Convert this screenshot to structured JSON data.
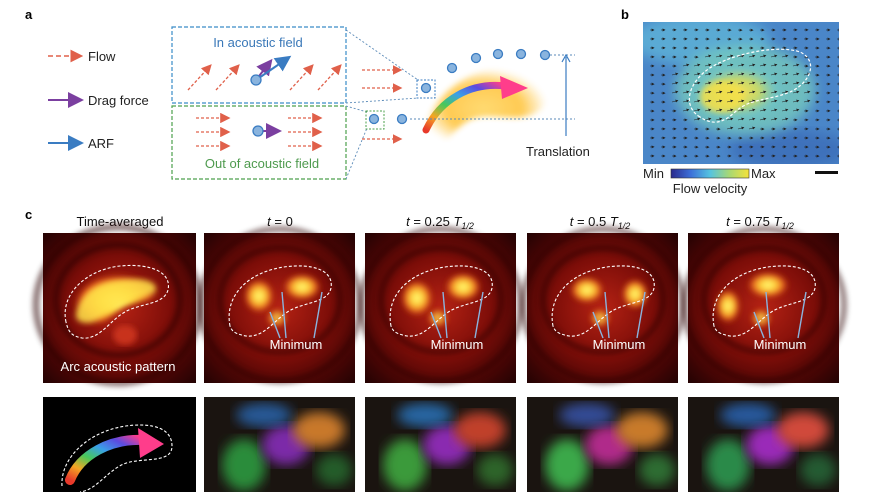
{
  "panels": {
    "a": "a",
    "b": "b",
    "c": "c"
  },
  "panel_a": {
    "legend": [
      {
        "label": "Flow",
        "color": "#e07a5f"
      },
      {
        "label": "Drag force",
        "color": "#7b3fa0"
      },
      {
        "label": "ARF",
        "color": "#3a7cc2"
      }
    ],
    "in_field_label": "In acoustic field",
    "out_field_label": "Out of acoustic field",
    "translation_label": "Translation"
  },
  "panel_b": {
    "colorbar_min": "Min",
    "colorbar_max": "Max",
    "colorbar_title": "Flow velocity"
  },
  "panel_c": {
    "columns": [
      {
        "prefix": "",
        "title": "Time-averaged"
      },
      {
        "prefix": "t",
        "title": " = 0"
      },
      {
        "prefix": "t",
        "title": " = 0.25 ",
        "t_sym": "T",
        "t_sub": "1/2"
      },
      {
        "prefix": "t",
        "title": " = 0.5 ",
        "t_sym": "T",
        "t_sub": "1/2"
      },
      {
        "prefix": "t",
        "title": " = 0.75 ",
        "t_sym": "T",
        "t_sub": "1/2"
      }
    ],
    "pattern_label": "Arc acoustic pattern",
    "minimum_label": "Minimum"
  }
}
